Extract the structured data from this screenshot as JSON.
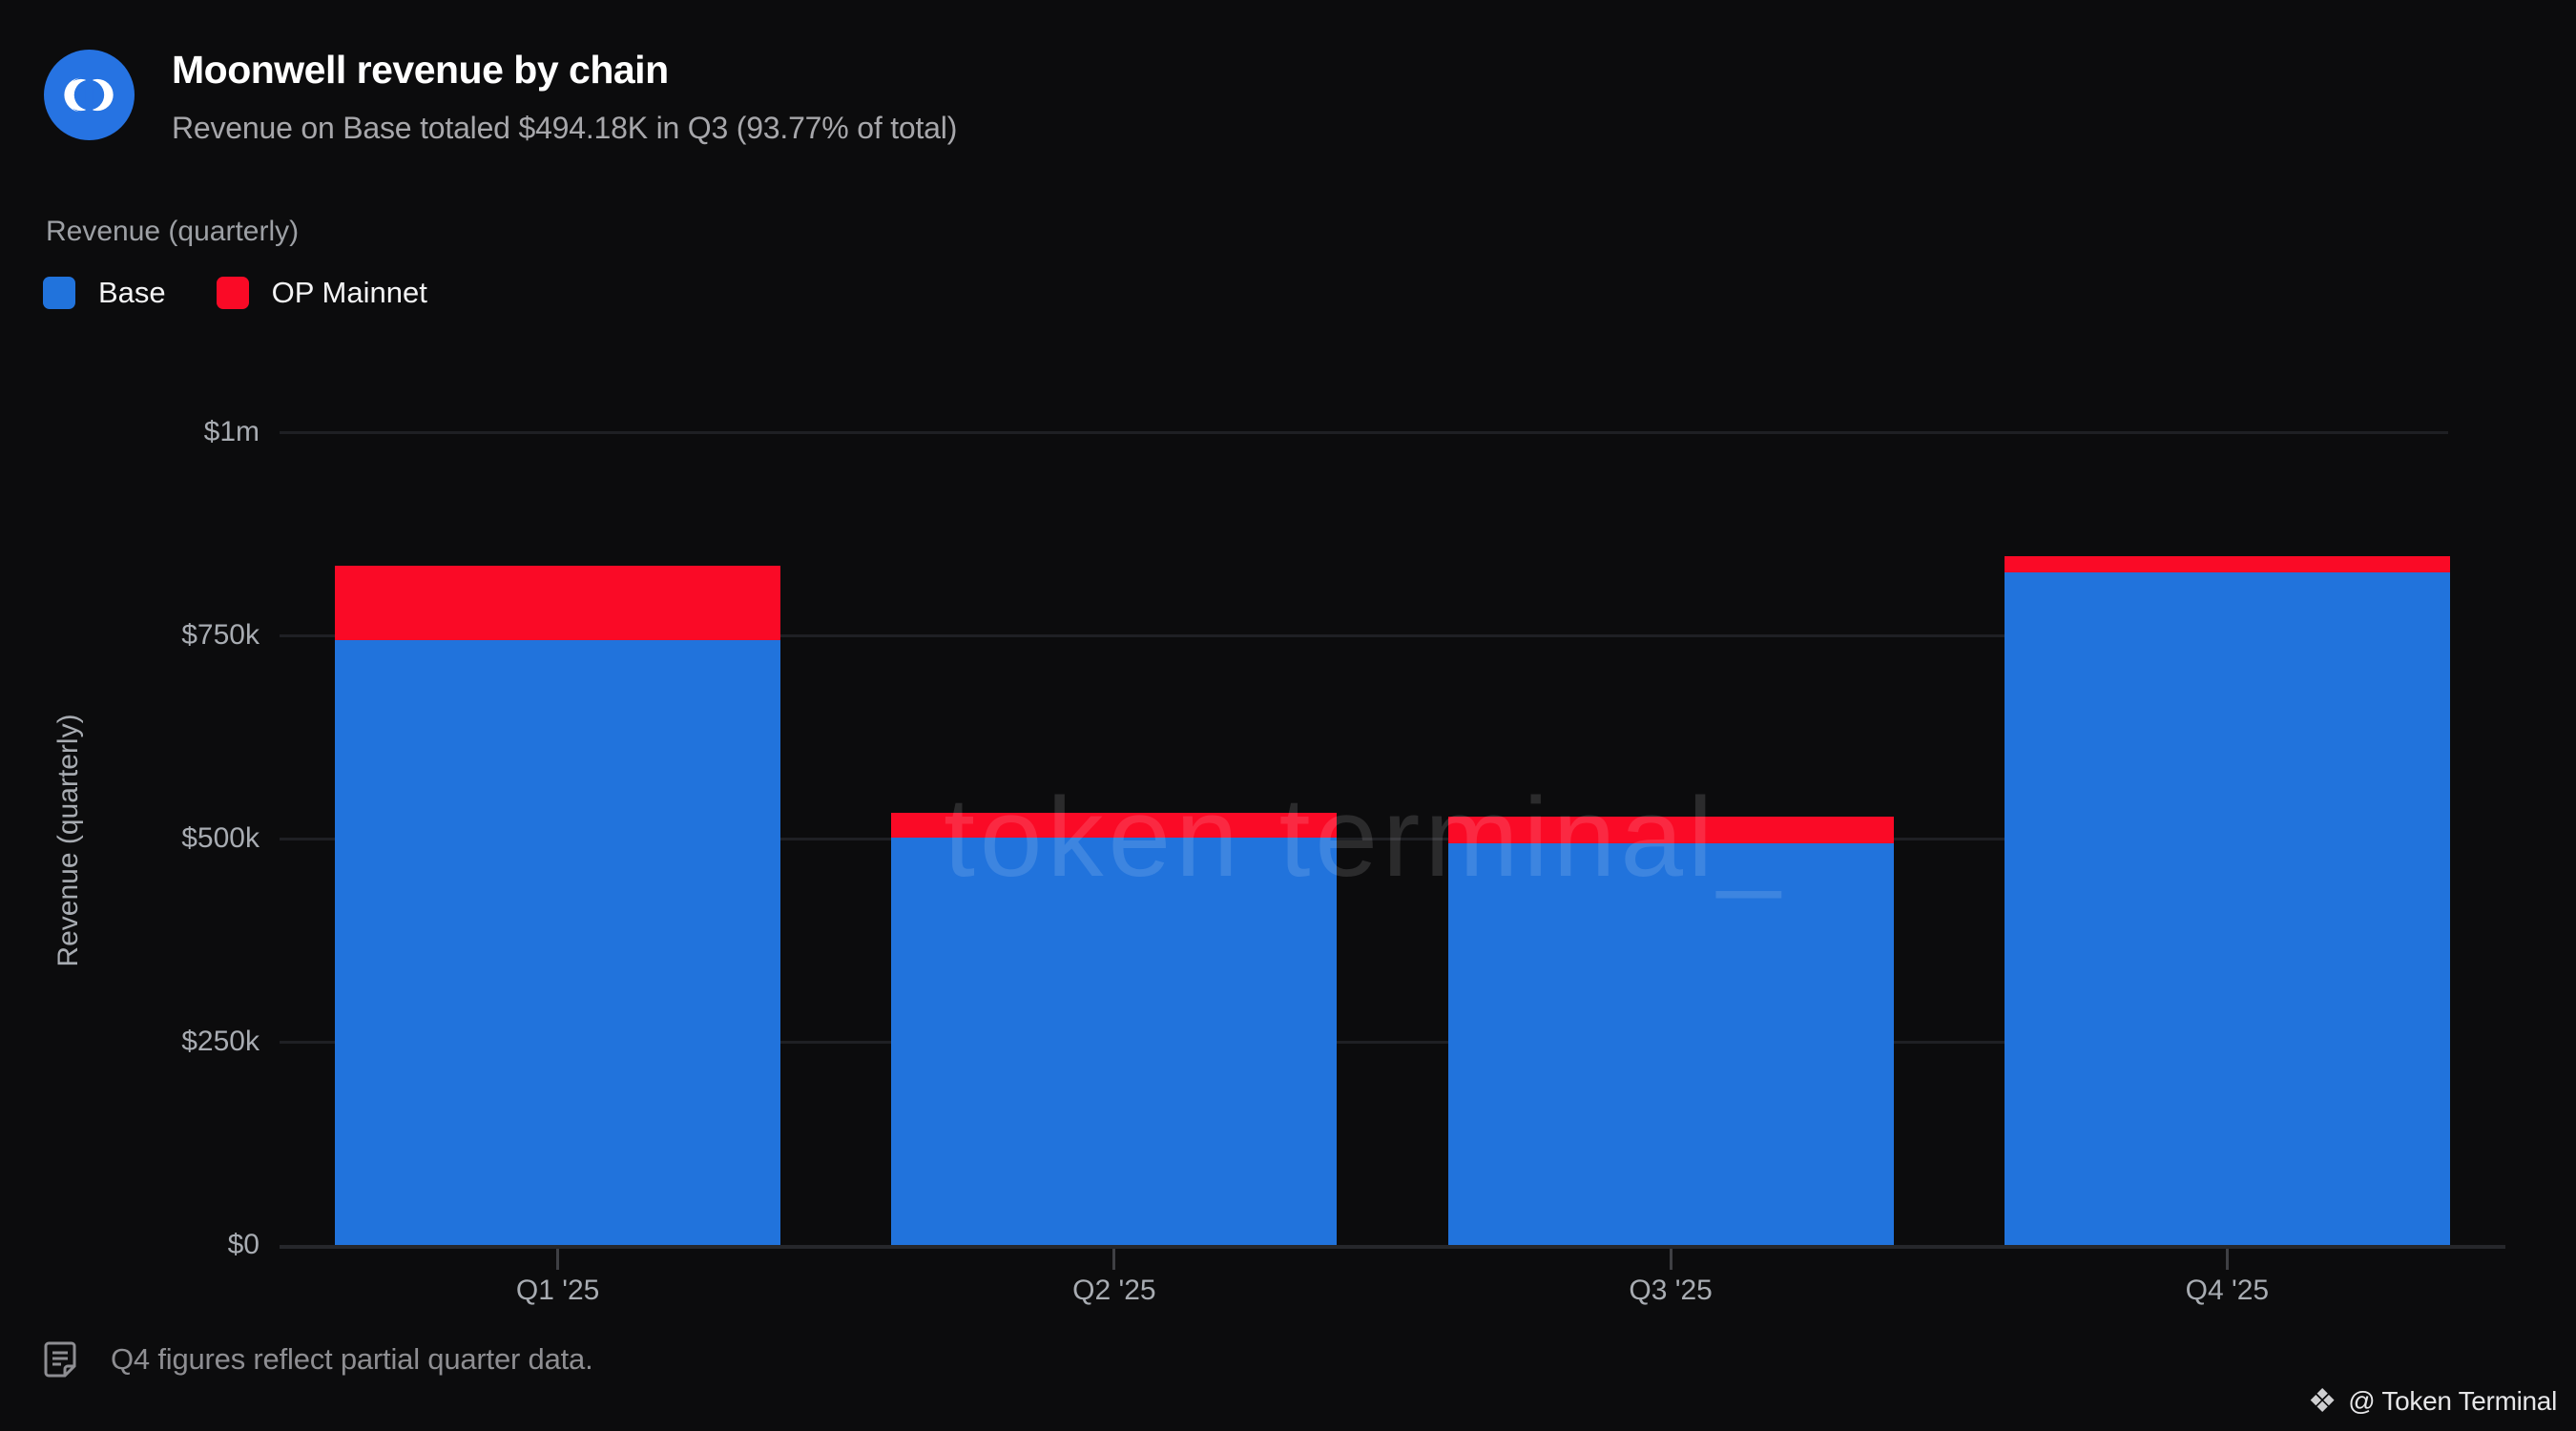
{
  "header": {
    "title": "Moonwell revenue by chain",
    "subtitle": "Revenue on Base totaled $494.18K in Q3 (93.77% of total)"
  },
  "metric_label": "Revenue (quarterly)",
  "legend": [
    {
      "label": "Base",
      "color": "#2173DC"
    },
    {
      "label": "OP Mainnet",
      "color": "#FA0A26"
    }
  ],
  "chart_data": {
    "type": "bar",
    "stacked": true,
    "title": "Moonwell revenue by chain",
    "xlabel": "",
    "ylabel": "Revenue (quarterly)",
    "categories": [
      "Q1 '25",
      "Q2 '25",
      "Q3 '25",
      "Q4 '25"
    ],
    "series": [
      {
        "name": "Base",
        "color": "#2173DC",
        "values": [
          744000,
          501000,
          494180,
          828000
        ]
      },
      {
        "name": "OP Mainnet",
        "color": "#FA0A26",
        "values": [
          92000,
          31000,
          32850,
          20000
        ]
      }
    ],
    "ylim": [
      0,
      1000000
    ],
    "yticks": [
      {
        "value": 0,
        "label": "$0"
      },
      {
        "value": 250000,
        "label": "$250k"
      },
      {
        "value": 500000,
        "label": "$500k"
      },
      {
        "value": 750000,
        "label": "$750k"
      },
      {
        "value": 1000000,
        "label": "$1m"
      }
    ],
    "grid": "horizontal",
    "legend_position": "top-left",
    "watermark": "token terminal_",
    "background": "#0C0C0D"
  },
  "footer": {
    "note": "Q4 figures reflect partial quarter data."
  },
  "attribution": {
    "icon_glyph": "❖",
    "text": "@ Token Terminal"
  },
  "colors": {
    "base_blue": "#2173DC",
    "op_red": "#FA0A26",
    "background": "#0C0C0D",
    "gridline": "#1F2024",
    "axis_text": "#A8ACB2",
    "logo_blue": "#2673E2"
  }
}
